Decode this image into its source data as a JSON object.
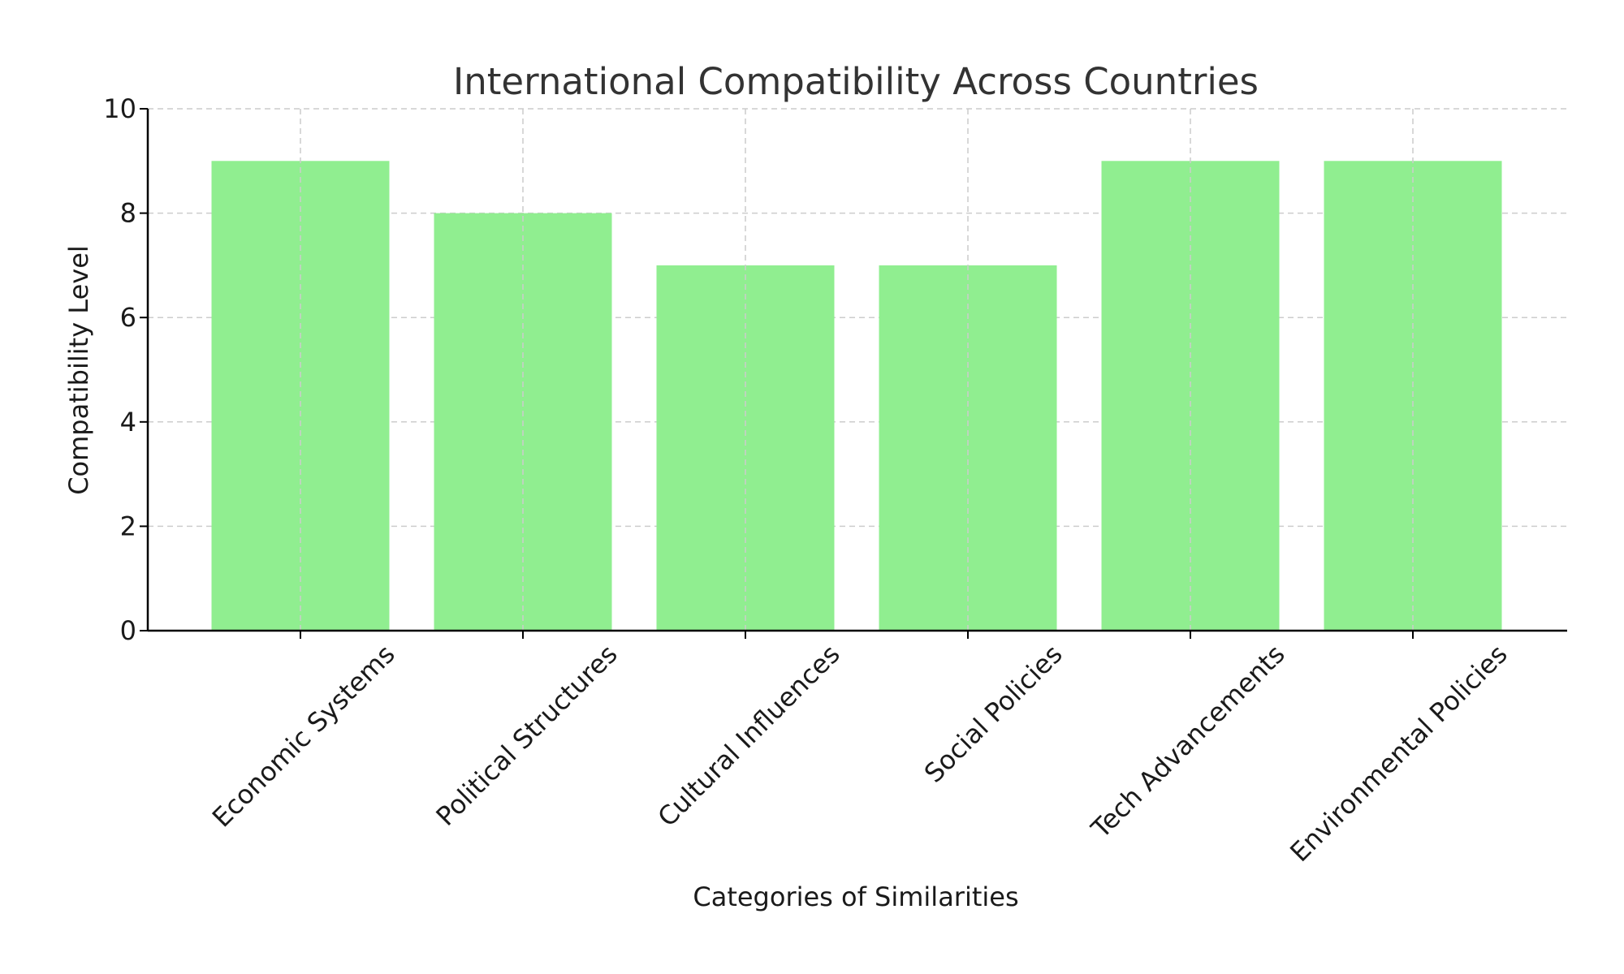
{
  "chart_data": {
    "type": "bar",
    "title": "International Compatibility Across Countries",
    "xlabel": "Categories of Similarities",
    "ylabel": "Compatibility Level",
    "categories": [
      "Economic Systems",
      "Political Structures",
      "Cultural Influences",
      "Social Policies",
      "Tech Advancements",
      "Environmental Policies"
    ],
    "values": [
      9,
      8,
      7,
      7,
      9,
      9
    ],
    "ylim": [
      0,
      10
    ],
    "yticks": [
      "0",
      "2",
      "4",
      "6",
      "8",
      "10"
    ],
    "bar_color": "#90ee90",
    "grid": true,
    "legend": "none"
  }
}
